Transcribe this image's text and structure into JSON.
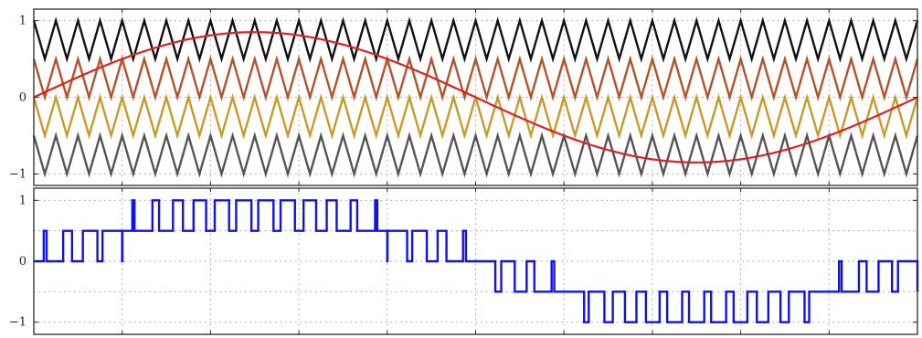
{
  "chart_data": [
    {
      "type": "line",
      "title": "",
      "xlabel": "",
      "ylabel": "",
      "xlim": [
        0,
        1
      ],
      "ylim": [
        -1.15,
        1.15
      ],
      "yticks": [
        1,
        0,
        -1
      ],
      "ytick_labels": [
        "1",
        "0",
        "−1"
      ],
      "xgrid": [
        0.1,
        0.2,
        0.3,
        0.4,
        0.5,
        0.6,
        0.7,
        0.8,
        0.9
      ],
      "grid": true,
      "carrier_periods": 40,
      "series": [
        {
          "kind": "triangle-carrier",
          "band": [
            0.5,
            1.0
          ],
          "color": "#111111"
        },
        {
          "kind": "triangle-carrier",
          "band": [
            0.0,
            0.5
          ],
          "color": "#b5522a"
        },
        {
          "kind": "triangle-carrier",
          "band": [
            -0.5,
            0.0
          ],
          "color": "#c89a2a"
        },
        {
          "kind": "triangle-carrier",
          "band": [
            -1.0,
            -0.5
          ],
          "color": "#555555"
        },
        {
          "kind": "sine-reference",
          "amplitude": 0.85,
          "phase": 0.0,
          "color": "#e02020"
        }
      ]
    },
    {
      "type": "line",
      "title": "",
      "xlabel": "",
      "ylabel": "",
      "xlim": [
        0,
        1
      ],
      "ylim": [
        -1.2,
        1.2
      ],
      "yticks": [
        1,
        0,
        -1
      ],
      "ytick_labels": [
        "1",
        "0",
        "−1"
      ],
      "xgrid": [
        0.1,
        0.2,
        0.3,
        0.4,
        0.5,
        0.6,
        0.7,
        0.8,
        0.9
      ],
      "ygrid": [
        0.5,
        -0.5
      ],
      "grid": true,
      "series": [
        {
          "kind": "multilevel-pwm-output",
          "levels": [
            -1,
            -0.5,
            0,
            0.5,
            1
          ],
          "color": "#1010ee"
        }
      ]
    }
  ]
}
